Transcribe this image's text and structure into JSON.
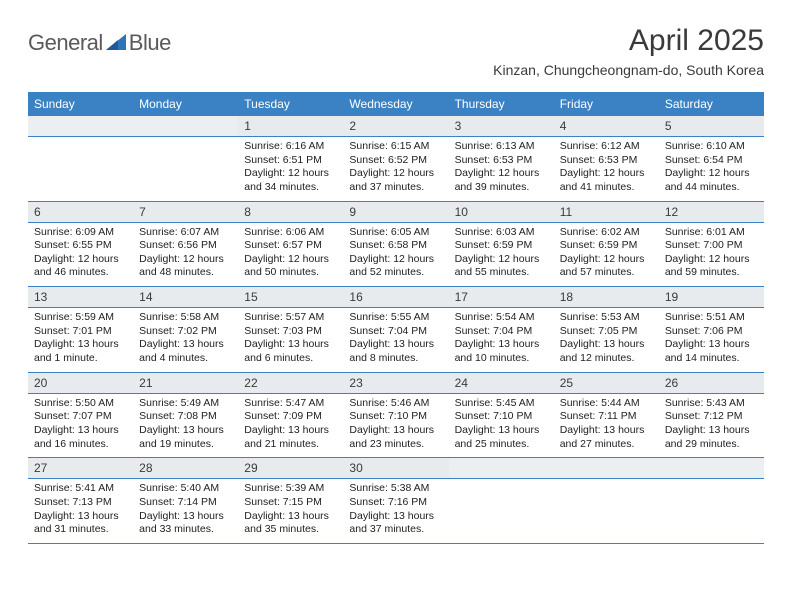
{
  "logo": {
    "part1": "General",
    "part2": "Blue"
  },
  "title": "April 2025",
  "subtitle": "Kinzan, Chungcheongnam-do, South Korea",
  "colors": {
    "header_bg": "#3b82c4",
    "header_fg": "#ffffff",
    "daynum_bg": "#e8ebed",
    "text": "#222222",
    "logo_gray": "#5a5a5a",
    "logo_blue": "#2f74b5"
  },
  "weekdays": [
    "Sunday",
    "Monday",
    "Tuesday",
    "Wednesday",
    "Thursday",
    "Friday",
    "Saturday"
  ],
  "weeks": [
    [
      null,
      null,
      {
        "n": "1",
        "sr": "6:16 AM",
        "ss": "6:51 PM",
        "dl": "12 hours and 34 minutes."
      },
      {
        "n": "2",
        "sr": "6:15 AM",
        "ss": "6:52 PM",
        "dl": "12 hours and 37 minutes."
      },
      {
        "n": "3",
        "sr": "6:13 AM",
        "ss": "6:53 PM",
        "dl": "12 hours and 39 minutes."
      },
      {
        "n": "4",
        "sr": "6:12 AM",
        "ss": "6:53 PM",
        "dl": "12 hours and 41 minutes."
      },
      {
        "n": "5",
        "sr": "6:10 AM",
        "ss": "6:54 PM",
        "dl": "12 hours and 44 minutes."
      }
    ],
    [
      {
        "n": "6",
        "sr": "6:09 AM",
        "ss": "6:55 PM",
        "dl": "12 hours and 46 minutes."
      },
      {
        "n": "7",
        "sr": "6:07 AM",
        "ss": "6:56 PM",
        "dl": "12 hours and 48 minutes."
      },
      {
        "n": "8",
        "sr": "6:06 AM",
        "ss": "6:57 PM",
        "dl": "12 hours and 50 minutes."
      },
      {
        "n": "9",
        "sr": "6:05 AM",
        "ss": "6:58 PM",
        "dl": "12 hours and 52 minutes."
      },
      {
        "n": "10",
        "sr": "6:03 AM",
        "ss": "6:59 PM",
        "dl": "12 hours and 55 minutes."
      },
      {
        "n": "11",
        "sr": "6:02 AM",
        "ss": "6:59 PM",
        "dl": "12 hours and 57 minutes."
      },
      {
        "n": "12",
        "sr": "6:01 AM",
        "ss": "7:00 PM",
        "dl": "12 hours and 59 minutes."
      }
    ],
    [
      {
        "n": "13",
        "sr": "5:59 AM",
        "ss": "7:01 PM",
        "dl": "13 hours and 1 minute."
      },
      {
        "n": "14",
        "sr": "5:58 AM",
        "ss": "7:02 PM",
        "dl": "13 hours and 4 minutes."
      },
      {
        "n": "15",
        "sr": "5:57 AM",
        "ss": "7:03 PM",
        "dl": "13 hours and 6 minutes."
      },
      {
        "n": "16",
        "sr": "5:55 AM",
        "ss": "7:04 PM",
        "dl": "13 hours and 8 minutes."
      },
      {
        "n": "17",
        "sr": "5:54 AM",
        "ss": "7:04 PM",
        "dl": "13 hours and 10 minutes."
      },
      {
        "n": "18",
        "sr": "5:53 AM",
        "ss": "7:05 PM",
        "dl": "13 hours and 12 minutes."
      },
      {
        "n": "19",
        "sr": "5:51 AM",
        "ss": "7:06 PM",
        "dl": "13 hours and 14 minutes."
      }
    ],
    [
      {
        "n": "20",
        "sr": "5:50 AM",
        "ss": "7:07 PM",
        "dl": "13 hours and 16 minutes."
      },
      {
        "n": "21",
        "sr": "5:49 AM",
        "ss": "7:08 PM",
        "dl": "13 hours and 19 minutes."
      },
      {
        "n": "22",
        "sr": "5:47 AM",
        "ss": "7:09 PM",
        "dl": "13 hours and 21 minutes."
      },
      {
        "n": "23",
        "sr": "5:46 AM",
        "ss": "7:10 PM",
        "dl": "13 hours and 23 minutes."
      },
      {
        "n": "24",
        "sr": "5:45 AM",
        "ss": "7:10 PM",
        "dl": "13 hours and 25 minutes."
      },
      {
        "n": "25",
        "sr": "5:44 AM",
        "ss": "7:11 PM",
        "dl": "13 hours and 27 minutes."
      },
      {
        "n": "26",
        "sr": "5:43 AM",
        "ss": "7:12 PM",
        "dl": "13 hours and 29 minutes."
      }
    ],
    [
      {
        "n": "27",
        "sr": "5:41 AM",
        "ss": "7:13 PM",
        "dl": "13 hours and 31 minutes."
      },
      {
        "n": "28",
        "sr": "5:40 AM",
        "ss": "7:14 PM",
        "dl": "13 hours and 33 minutes."
      },
      {
        "n": "29",
        "sr": "5:39 AM",
        "ss": "7:15 PM",
        "dl": "13 hours and 35 minutes."
      },
      {
        "n": "30",
        "sr": "5:38 AM",
        "ss": "7:16 PM",
        "dl": "13 hours and 37 minutes."
      },
      null,
      null,
      null
    ]
  ]
}
